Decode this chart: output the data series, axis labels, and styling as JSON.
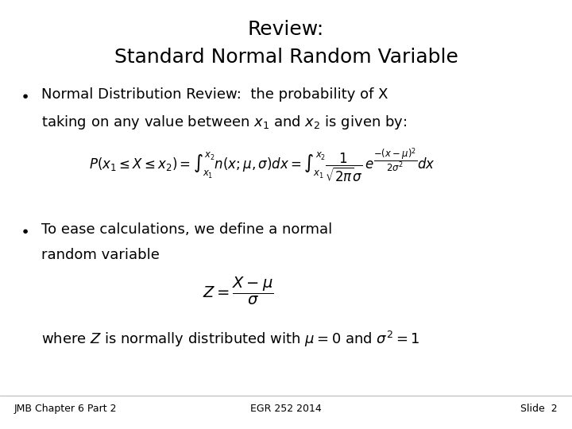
{
  "title_line1": "Review:",
  "title_line2": "Standard Normal Random Variable",
  "bullet1_text1": "Normal Distribution Review:  the probability of X",
  "bullet1_text2": "taking on any value between $x_1$ and $x_2$ is given by:",
  "equation1": "$P(x_1 \\leq X \\leq x_2) = \\int_{x_1}^{x_2} n(x;\\mu,\\sigma)dx = \\int_{x_1}^{x_2} \\dfrac{1}{\\sqrt{2\\pi}\\sigma}\\, e^{\\dfrac{-(x-\\mu)^2}{2\\sigma^2}} dx$",
  "bullet2_text1": "To ease calculations, we define a normal",
  "bullet2_text2": "random variable",
  "equation2": "$Z = \\dfrac{X - \\mu}{\\sigma}$",
  "where_line": "where $Z$ is normally distributed with $\\mu = 0$ and $\\sigma^2 = 1$",
  "footer_left": "JMB Chapter 6 Part 2",
  "footer_center": "EGR 252 2014",
  "footer_right": "Slide  2",
  "bg_color": "#ffffff",
  "text_color": "#000000",
  "title_fontsize": 18,
  "body_fontsize": 13,
  "eq_fontsize": 12,
  "footer_fontsize": 9
}
